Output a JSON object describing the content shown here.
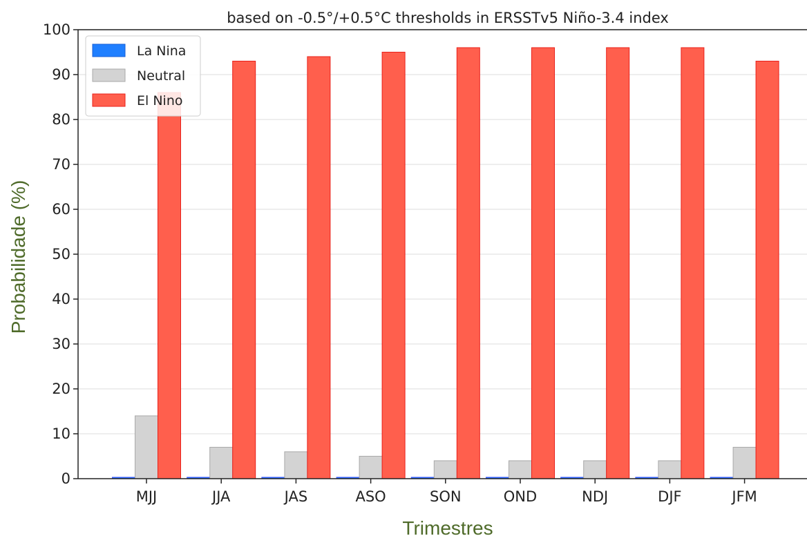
{
  "chart_data": {
    "type": "bar",
    "title": "based on -0.5°/+0.5°C thresholds in ERSSTv5 Niño-3.4 index",
    "xlabel": "Trimestres",
    "ylabel": "Probabilidade (%)",
    "categories": [
      "MJJ",
      "JJA",
      "JAS",
      "ASO",
      "SON",
      "OND",
      "NDJ",
      "DJF",
      "JFM"
    ],
    "series": [
      {
        "name": "La Nina",
        "color": "#1f7fff",
        "values": [
          0,
          0,
          0,
          0,
          0,
          0,
          0,
          0,
          0
        ]
      },
      {
        "name": "Neutral",
        "color": "#d3d3d3",
        "values": [
          14,
          7,
          6,
          5,
          4,
          4,
          4,
          4,
          7
        ]
      },
      {
        "name": "El Nino",
        "color": "#ff5f4d",
        "values": [
          86,
          93,
          94,
          95,
          96,
          96,
          96,
          96,
          93
        ]
      }
    ],
    "ylim": [
      0,
      100
    ],
    "yticks": [
      0,
      10,
      20,
      30,
      40,
      50,
      60,
      70,
      80,
      90,
      100
    ],
    "grid": "horizontal",
    "legend_position": "top-left"
  }
}
